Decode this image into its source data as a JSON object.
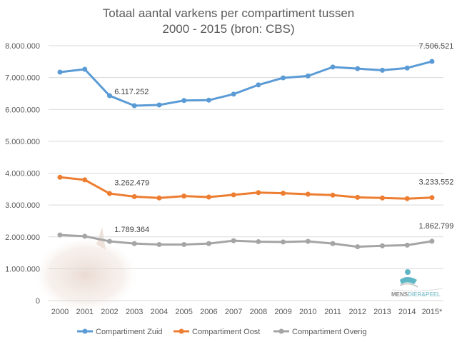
{
  "chart_data": {
    "type": "line",
    "title": [
      "Totaal aantal varkens per compartiment tussen",
      "2000 - 2015 (bron: CBS)"
    ],
    "xlabel": "",
    "ylabel": "",
    "categories": [
      "2000",
      "2001",
      "2002",
      "2003",
      "2004",
      "2005",
      "2006",
      "2007",
      "2008",
      "2009",
      "2010",
      "2011",
      "2012",
      "2013",
      "2014",
      "2015*"
    ],
    "ylim": [
      0,
      8000000
    ],
    "yticks": [
      0,
      1000000,
      2000000,
      3000000,
      4000000,
      5000000,
      6000000,
      7000000,
      8000000
    ],
    "ytick_labels": [
      "0",
      "1.000.000",
      "2.000.000",
      "3.000.000",
      "4.000.000",
      "5.000.000",
      "6.000.000",
      "7.000.000",
      "8.000.000"
    ],
    "grid": true,
    "legend_position": "bottom",
    "series": [
      {
        "name": "Compartiment Zuid",
        "color": "#5b9bd5",
        "values": [
          7170000,
          7260000,
          6430000,
          6117252,
          6140000,
          6280000,
          6290000,
          6480000,
          6770000,
          6990000,
          7050000,
          7330000,
          7280000,
          7230000,
          7300000,
          7506521
        ],
        "labels": {
          "3": "6.117.252",
          "15": "7.506.521"
        }
      },
      {
        "name": "Compartiment Oost",
        "color": "#ed7d31",
        "values": [
          3870000,
          3790000,
          3360000,
          3262479,
          3220000,
          3280000,
          3250000,
          3320000,
          3390000,
          3370000,
          3340000,
          3310000,
          3240000,
          3220000,
          3200000,
          3233552
        ],
        "labels": {
          "3": "3.262.479",
          "15": "3.233.552"
        }
      },
      {
        "name": "Compartiment Overig",
        "color": "#a5a5a5",
        "values": [
          2060000,
          2020000,
          1860000,
          1789364,
          1760000,
          1760000,
          1790000,
          1880000,
          1850000,
          1840000,
          1860000,
          1790000,
          1690000,
          1720000,
          1740000,
          1862799
        ],
        "labels": {
          "3": "1.789.364",
          "15": "1.862.799"
        }
      }
    ]
  },
  "logo": {
    "text_dark": "MENS",
    "text_light": "DIER&PEEL"
  }
}
